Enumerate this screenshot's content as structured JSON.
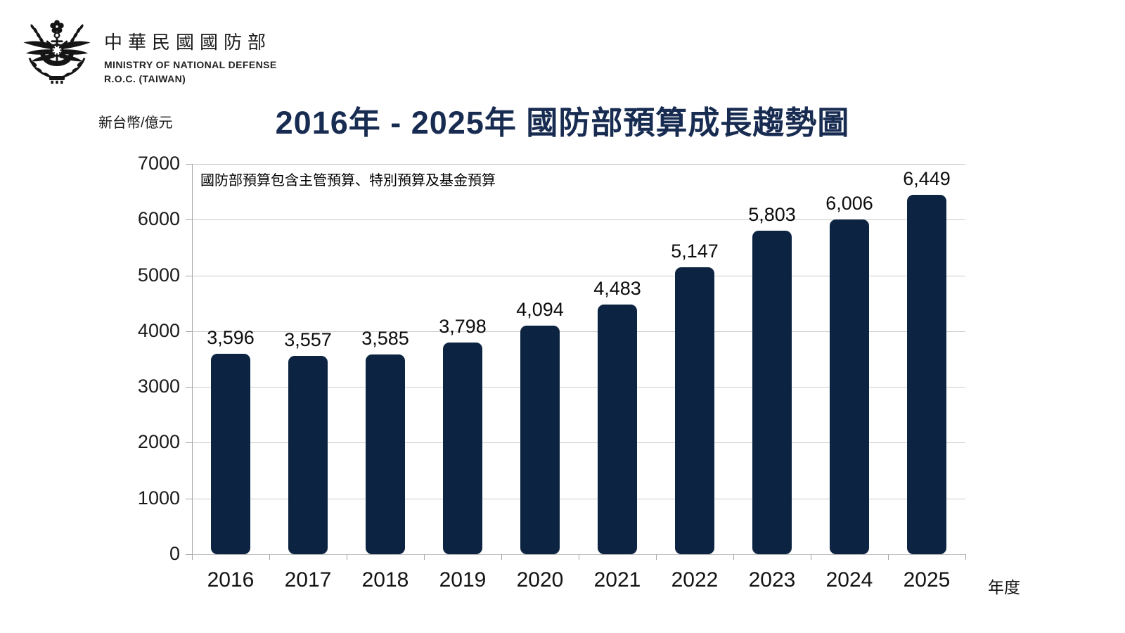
{
  "brand": {
    "emblem": "mnd-roc-emblem",
    "name_zh": "中華民國國防部",
    "name_en_line1": "MINISTRY OF NATIONAL DEFENSE",
    "name_en_line2": "R.O.C. (TAIWAN)"
  },
  "colors": {
    "bar": "#0c2441",
    "title": "#182c52",
    "grid": "#cccccc",
    "axis": "#a6a6a6",
    "text": "#111111"
  },
  "chart_data": {
    "type": "bar",
    "title": "2016年 - 2025年 國防部預算成長趨勢圖",
    "annotation": "國防部預算包含主管預算、特別預算及基金預算",
    "xlabel": "年度",
    "ylabel": "新台幣/億元",
    "categories": [
      "2016",
      "2017",
      "2018",
      "2019",
      "2020",
      "2021",
      "2022",
      "2023",
      "2024",
      "2025"
    ],
    "values": [
      3596,
      3557,
      3585,
      3798,
      4094,
      4483,
      5147,
      5803,
      6006,
      6449
    ],
    "value_labels": [
      "3,596",
      "3,557",
      "3,585",
      "3,798",
      "4,094",
      "4,483",
      "5,147",
      "5,803",
      "6,006",
      "6,449"
    ],
    "ylim": [
      0,
      7000
    ],
    "ytick_step": 1000,
    "grid": true,
    "legend": false
  }
}
